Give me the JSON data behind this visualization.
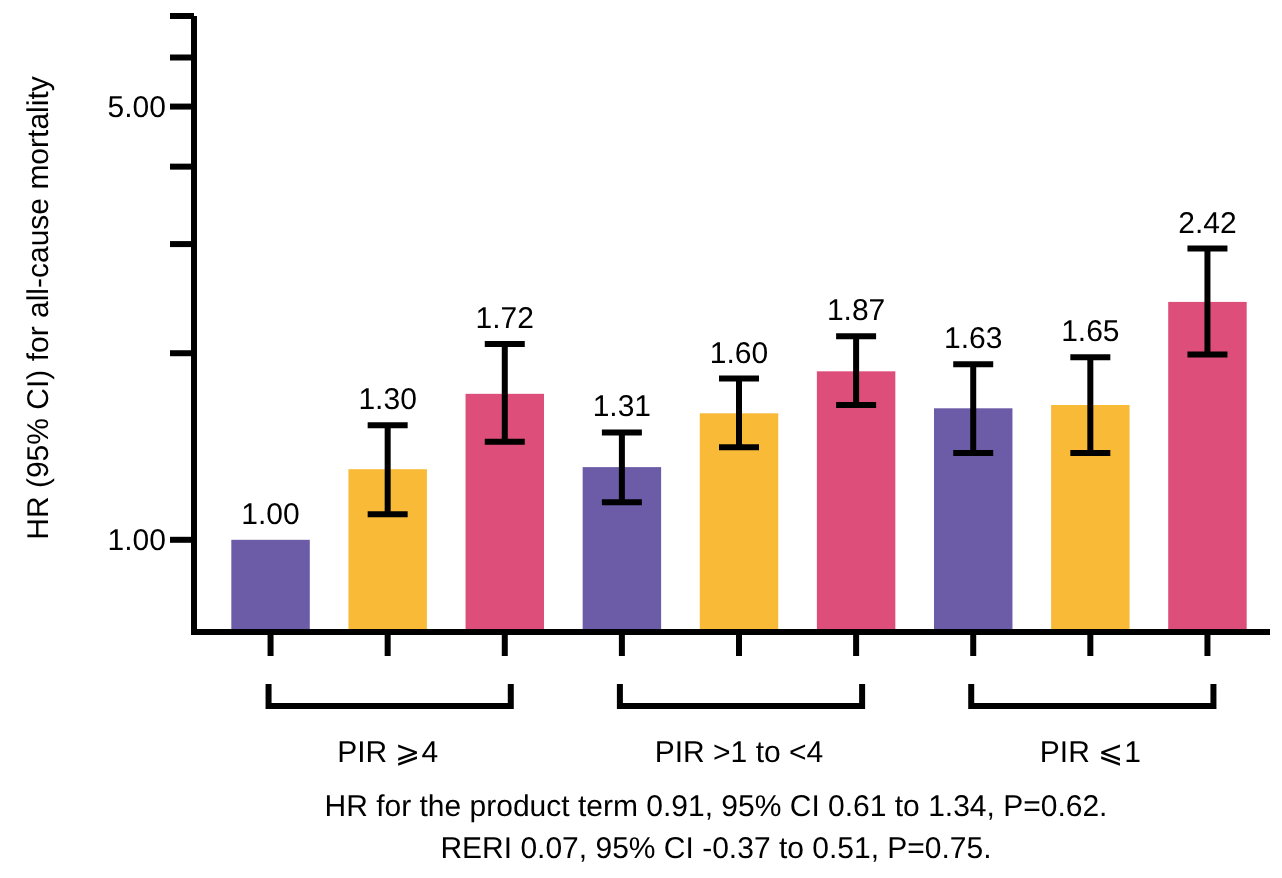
{
  "chart_data": {
    "type": "bar",
    "ylabel": "HR (95% CI) for all-cause mortality",
    "categories": [
      "PIR ⩾4",
      "PIR >1 to <4",
      "PIR ⩽1"
    ],
    "series": [
      {
        "color": "#6c5ba7",
        "values": [
          1.0,
          1.31,
          1.63
        ],
        "value_labels": [
          "1.00",
          "1.31",
          "1.63"
        ],
        "errors": [
          null,
          [
            1.15,
            1.49
          ],
          [
            1.38,
            1.92
          ]
        ]
      },
      {
        "color": "#f9bb37",
        "values": [
          1.3,
          1.6,
          1.65
        ],
        "value_labels": [
          "1.30",
          "1.60",
          "1.65"
        ],
        "errors": [
          [
            1.1,
            1.53
          ],
          [
            1.41,
            1.82
          ],
          [
            1.38,
            1.97
          ]
        ]
      },
      {
        "color": "#dd4e7a",
        "values": [
          1.72,
          1.87,
          2.42
        ],
        "value_labels": [
          "1.72",
          "1.87",
          "2.42"
        ],
        "errors": [
          [
            1.44,
            2.07
          ],
          [
            1.65,
            2.13
          ],
          [
            1.99,
            2.95
          ]
        ]
      }
    ],
    "log": true,
    "ylim": [
      0.71,
      7
    ],
    "yticks": [
      {
        "value": 1,
        "label": "1.00"
      },
      {
        "value": 2,
        "label": null
      },
      {
        "value": 3,
        "label": null
      },
      {
        "value": 4,
        "label": null
      },
      {
        "value": 5,
        "label": "5.00"
      },
      {
        "value": 6,
        "label": null
      },
      {
        "value": 7,
        "label": null
      }
    ],
    "grid": false,
    "annotations": [
      "HR for the product term 0.91, 95% CI 0.61 to 1.34, P=0.62.",
      "RERI 0.07, 95% CI -0.37 to 0.51, P=0.75."
    ]
  }
}
